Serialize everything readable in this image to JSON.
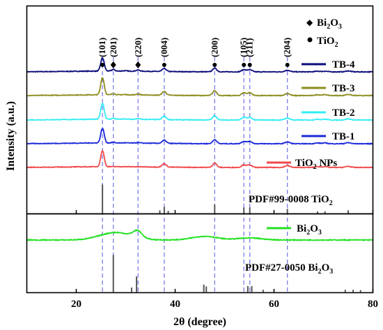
{
  "chart_data": {
    "type": "line",
    "xlabel": "2θ (degree)",
    "ylabel": "Intensity (a.u.)",
    "xlim": [
      10,
      80
    ],
    "xticks": [
      20,
      40,
      60,
      80
    ],
    "legend_top": {
      "bi2o3": {
        "base": "Bi",
        "sub": "2",
        "mid": "O",
        "sub2": "3",
        "symbol": "diamond"
      },
      "tio2": {
        "base": "TiO",
        "sub": "2",
        "symbol": "dot"
      }
    },
    "peak_labels": [
      {
        "hkl": "(101)",
        "x": 25.3,
        "phase": "TiO2"
      },
      {
        "hkl": "(201)",
        "x": 27.5,
        "phase": "Bi2O3"
      },
      {
        "hkl": "(220)",
        "x": 32.5,
        "phase": "Bi2O3"
      },
      {
        "hkl": "(004)",
        "x": 37.8,
        "phase": "TiO2"
      },
      {
        "hkl": "(200)",
        "x": 48.0,
        "phase": "TiO2"
      },
      {
        "hkl": "(105)",
        "x": 53.9,
        "phase": "TiO2"
      },
      {
        "hkl": "(211)",
        "x": 55.1,
        "phase": "TiO2"
      },
      {
        "hkl": "(204)",
        "x": 62.7,
        "phase": "TiO2"
      }
    ],
    "dashed_lines_x": [
      25.3,
      27.5,
      32.5,
      37.8,
      48.0,
      53.9,
      55.1,
      62.7
    ],
    "series": [
      {
        "name": "TB-4",
        "color": "#0a0a7a",
        "panel": "top",
        "offset": 4,
        "amp": 1.0,
        "bi_amp": 0.25
      },
      {
        "name": "TB-3",
        "color": "#8c8c1e",
        "panel": "top",
        "offset": 3,
        "amp": 1.3,
        "bi_amp": 0.2
      },
      {
        "name": "TB-2",
        "color": "#33ecf5",
        "panel": "top",
        "offset": 2,
        "amp": 1.2,
        "bi_amp": 0.15
      },
      {
        "name": "TB-1",
        "color": "#1a28d8",
        "panel": "top",
        "offset": 1,
        "amp": 1.1,
        "bi_amp": 0.1
      },
      {
        "name_base": "TiO",
        "name_sub": "2",
        "name_tail": " NPs",
        "color": "#f0474a",
        "panel": "top",
        "offset": 0,
        "amp": 1.2,
        "bi_amp": 0
      },
      {
        "name_base": "Bi",
        "name_sub": "2",
        "name_mid": "O",
        "name_sub2": "3",
        "color": "#22e022",
        "panel": "bottom",
        "offset": 0,
        "amp": 1.0,
        "bi_amp": 1
      }
    ],
    "reference_top": {
      "label_base": "PDF#99-0008 TiO",
      "label_sub": "2",
      "sticks": [
        [
          25.3,
          1.0
        ],
        [
          36.9,
          0.1
        ],
        [
          37.8,
          0.22
        ],
        [
          38.6,
          0.08
        ],
        [
          48.0,
          0.3
        ],
        [
          53.9,
          0.2
        ],
        [
          55.1,
          0.2
        ],
        [
          62.7,
          0.15
        ],
        [
          68.8,
          0.06
        ],
        [
          70.3,
          0.06
        ],
        [
          75.0,
          0.1
        ]
      ]
    },
    "reference_bottom": {
      "label_base": "PDF#27-0050 Bi",
      "label_sub": "2",
      "label_mid": "O",
      "label_sub2": "3",
      "sticks": [
        [
          27.5,
          1.0
        ],
        [
          31.2,
          0.12
        ],
        [
          32.2,
          0.42
        ],
        [
          45.8,
          0.2
        ],
        [
          46.3,
          0.15
        ],
        [
          54.7,
          0.16
        ],
        [
          55.5,
          0.16
        ],
        [
          57.8,
          0.06
        ],
        [
          74.4,
          0.06
        ],
        [
          76.0,
          0.06
        ],
        [
          77.5,
          0.05
        ]
      ]
    }
  }
}
